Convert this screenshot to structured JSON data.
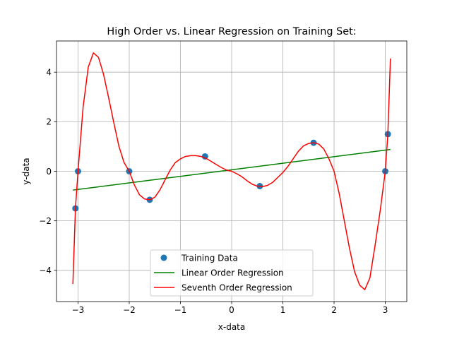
{
  "chart_data": {
    "type": "line",
    "title": "High Order vs. Linear Regression on Training Set:",
    "xlabel": "x-data",
    "ylabel": "y-data",
    "xlim": [
      -3.42,
      3.42
    ],
    "ylim": [
      -5.26,
      5.26
    ],
    "xticks": [
      -3,
      -2,
      -1,
      0,
      1,
      2,
      3
    ],
    "yticks": [
      -4,
      -2,
      0,
      2,
      4
    ],
    "xtick_labels": [
      "−3",
      "−2",
      "−1",
      "0",
      "1",
      "2",
      "3"
    ],
    "ytick_labels": [
      "−4",
      "−2",
      "0",
      "2",
      "4"
    ],
    "grid": true,
    "legend_position": "lower center",
    "scatter": {
      "name": "Training Data",
      "color": "#1f77b4",
      "x": [
        -3.05,
        -3.0,
        -2.0,
        -1.6,
        -0.52,
        0.55,
        1.6,
        3.0,
        3.05
      ],
      "y": [
        -1.5,
        0.0,
        0.0,
        -1.15,
        0.6,
        -0.6,
        1.15,
        0.0,
        1.5
      ]
    },
    "series": [
      {
        "name": "Linear Order Regression",
        "color": "#008000",
        "x": [
          -3.1,
          3.1
        ],
        "y": [
          -0.76,
          0.88
        ]
      },
      {
        "name": "Seventh Order Regression",
        "color": "#ff0000",
        "x": [
          -3.1,
          -3.05,
          -3.0,
          -2.9,
          -2.8,
          -2.7,
          -2.6,
          -2.5,
          -2.4,
          -2.3,
          -2.2,
          -2.1,
          -2.0,
          -1.9,
          -1.8,
          -1.7,
          -1.6,
          -1.5,
          -1.4,
          -1.3,
          -1.2,
          -1.1,
          -1.0,
          -0.9,
          -0.8,
          -0.7,
          -0.6,
          -0.5,
          -0.4,
          -0.3,
          -0.2,
          -0.1,
          0.0,
          0.1,
          0.2,
          0.3,
          0.4,
          0.5,
          0.6,
          0.7,
          0.8,
          0.9,
          1.0,
          1.1,
          1.2,
          1.3,
          1.4,
          1.5,
          1.6,
          1.7,
          1.8,
          1.9,
          2.0,
          2.1,
          2.2,
          2.3,
          2.4,
          2.5,
          2.6,
          2.7,
          2.8,
          2.9,
          3.0,
          3.05,
          3.1
        ],
        "y": [
          -4.55,
          -1.5,
          0.0,
          2.6,
          4.2,
          4.78,
          4.6,
          3.9,
          2.95,
          1.95,
          1.0,
          0.35,
          0.0,
          -0.55,
          -0.95,
          -1.12,
          -1.15,
          -1.05,
          -0.75,
          -0.35,
          0.05,
          0.35,
          0.5,
          0.6,
          0.63,
          0.63,
          0.6,
          0.52,
          0.4,
          0.27,
          0.15,
          0.05,
          0.0,
          -0.1,
          -0.22,
          -0.38,
          -0.52,
          -0.6,
          -0.62,
          -0.57,
          -0.45,
          -0.25,
          -0.05,
          0.2,
          0.5,
          0.8,
          1.02,
          1.12,
          1.15,
          1.1,
          0.9,
          0.5,
          0.0,
          -0.9,
          -2.0,
          -3.1,
          -4.05,
          -4.6,
          -4.78,
          -4.3,
          -3.0,
          -1.6,
          0.0,
          1.5,
          4.55
        ]
      }
    ]
  }
}
